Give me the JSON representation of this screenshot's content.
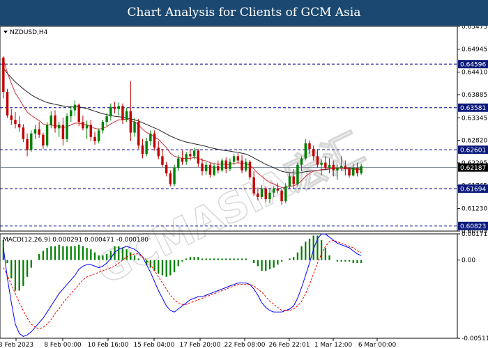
{
  "header": {
    "title": "Chart Analysis for Clients of GCM Asia"
  },
  "watermark": {
    "text": "GCMASIA宏汇",
    "color": "#c8c8c8"
  },
  "chart_data": [
    {
      "type": "candlestick",
      "symbol_label": "NZDUSD,H4",
      "ylim": [
        0.60705,
        0.65475
      ],
      "y_ticks": [
        "0.65475",
        "0.64945",
        "0.64410",
        "0.63885",
        "0.63345",
        "0.62820",
        "0.62295",
        "0.61765",
        "0.61230",
        "0.60705"
      ],
      "x_ticks": [
        "3 Feb 2023",
        "8 Feb 00:00",
        "10 Feb 16:00",
        "15 Feb 04:00",
        "17 Feb 20:00",
        "22 Feb 08:00",
        "26 Feb 22:01",
        "1 Mar 12:00",
        "6 Mar 00:00"
      ],
      "levels": [
        {
          "value": 0.64596,
          "label": "0.64596",
          "style": "dashed",
          "color": "#00008b"
        },
        {
          "value": 0.63581,
          "label": "0.63581",
          "style": "dashed",
          "color": "#00008b"
        },
        {
          "value": 0.62601,
          "label": "0.62601",
          "style": "dashed",
          "color": "#00008b"
        },
        {
          "value": 0.61694,
          "label": "0.61694",
          "style": "dashed",
          "color": "#00008b"
        },
        {
          "value": 0.60823,
          "label": "0.60823",
          "style": "dashed",
          "color": "#00008b"
        },
        {
          "value": 0.62187,
          "label": "0.62187",
          "style": "solid",
          "color": "#708090",
          "current": true
        }
      ],
      "candle_colors": {
        "up": "#008000",
        "down": "#c00000"
      },
      "candles": [
        [
          0.6475,
          0.6478,
          0.638,
          0.6395
        ],
        [
          0.6395,
          0.6402,
          0.6335,
          0.634
        ],
        [
          0.634,
          0.6355,
          0.6318,
          0.633
        ],
        [
          0.633,
          0.6348,
          0.631,
          0.632
        ],
        [
          0.632,
          0.6338,
          0.6302,
          0.6312
        ],
        [
          0.6312,
          0.632,
          0.6278,
          0.6285
        ],
        [
          0.6285,
          0.6298,
          0.6245,
          0.626
        ],
        [
          0.626,
          0.6305,
          0.6255,
          0.6298
        ],
        [
          0.6298,
          0.6318,
          0.6285,
          0.6308
        ],
        [
          0.6308,
          0.6325,
          0.6288,
          0.6295
        ],
        [
          0.6295,
          0.63,
          0.6262,
          0.627
        ],
        [
          0.627,
          0.6325,
          0.6265,
          0.6318
        ],
        [
          0.6318,
          0.635,
          0.631,
          0.634
        ],
        [
          0.634,
          0.6352,
          0.63,
          0.631
        ],
        [
          0.631,
          0.6325,
          0.629,
          0.6318
        ],
        [
          0.6318,
          0.6335,
          0.627,
          0.6285
        ],
        [
          0.6285,
          0.6345,
          0.6278,
          0.6338
        ],
        [
          0.6338,
          0.6362,
          0.6325,
          0.6352
        ],
        [
          0.6352,
          0.6375,
          0.6338,
          0.6365
        ],
        [
          0.6365,
          0.6368,
          0.6315,
          0.6325
        ],
        [
          0.6325,
          0.634,
          0.6305,
          0.631
        ],
        [
          0.631,
          0.6328,
          0.6285,
          0.6318
        ],
        [
          0.6318,
          0.633,
          0.628,
          0.629
        ],
        [
          0.629,
          0.6302,
          0.6272,
          0.628
        ],
        [
          0.628,
          0.631,
          0.6275,
          0.6305
        ],
        [
          0.6305,
          0.633,
          0.6298,
          0.6325
        ],
        [
          0.6325,
          0.6345,
          0.6315,
          0.6338
        ],
        [
          0.6338,
          0.6368,
          0.6328,
          0.636
        ],
        [
          0.636,
          0.6372,
          0.6345,
          0.6355
        ],
        [
          0.6355,
          0.637,
          0.634,
          0.6362
        ],
        [
          0.6362,
          0.6368,
          0.632,
          0.633
        ],
        [
          0.633,
          0.6358,
          0.6325,
          0.635
        ],
        [
          0.635,
          0.642,
          0.628,
          0.63
        ],
        [
          0.63,
          0.6335,
          0.629,
          0.6325
        ],
        [
          0.6325,
          0.6332,
          0.6262,
          0.627
        ],
        [
          0.627,
          0.6285,
          0.624,
          0.625
        ],
        [
          0.625,
          0.6288,
          0.6245,
          0.628
        ],
        [
          0.628,
          0.6305,
          0.627,
          0.6298
        ],
        [
          0.6298,
          0.6305,
          0.6258,
          0.6265
        ],
        [
          0.6265,
          0.628,
          0.6238,
          0.6245
        ],
        [
          0.6245,
          0.6262,
          0.622,
          0.6225
        ],
        [
          0.6225,
          0.6232,
          0.6198,
          0.6205
        ],
        [
          0.6205,
          0.6212,
          0.6175,
          0.618
        ],
        [
          0.618,
          0.6225,
          0.6175,
          0.6218
        ],
        [
          0.6218,
          0.6248,
          0.621,
          0.624
        ],
        [
          0.624,
          0.6258,
          0.6225,
          0.6232
        ],
        [
          0.6232,
          0.6255,
          0.6225,
          0.625
        ],
        [
          0.625,
          0.6262,
          0.6235,
          0.6245
        ],
        [
          0.6245,
          0.6265,
          0.6238,
          0.6258
        ],
        [
          0.6258,
          0.6262,
          0.622,
          0.6228
        ],
        [
          0.6228,
          0.624,
          0.62,
          0.621
        ],
        [
          0.621,
          0.6232,
          0.6202,
          0.6225
        ],
        [
          0.6225,
          0.623,
          0.6195,
          0.6202
        ],
        [
          0.6202,
          0.6228,
          0.6198,
          0.6222
        ],
        [
          0.6222,
          0.6235,
          0.6205,
          0.6212
        ],
        [
          0.6212,
          0.624,
          0.6208,
          0.6235
        ],
        [
          0.6235,
          0.6242,
          0.6205,
          0.6215
        ],
        [
          0.6215,
          0.624,
          0.621,
          0.6232
        ],
        [
          0.6232,
          0.625,
          0.6225,
          0.6245
        ],
        [
          0.6245,
          0.6252,
          0.6228,
          0.6235
        ],
        [
          0.6235,
          0.6248,
          0.6205,
          0.6212
        ],
        [
          0.6212,
          0.624,
          0.6208,
          0.6232
        ],
        [
          0.6232,
          0.6236,
          0.619,
          0.6196
        ],
        [
          0.6196,
          0.621,
          0.6152,
          0.6158
        ],
        [
          0.6158,
          0.6172,
          0.6142,
          0.615
        ],
        [
          0.615,
          0.6178,
          0.6145,
          0.617
        ],
        [
          0.617,
          0.6175,
          0.6138,
          0.6145
        ],
        [
          0.6145,
          0.6168,
          0.6135,
          0.616
        ],
        [
          0.616,
          0.6175,
          0.615,
          0.617
        ],
        [
          0.617,
          0.6182,
          0.6158,
          0.6165
        ],
        [
          0.6165,
          0.617,
          0.6132,
          0.614
        ],
        [
          0.614,
          0.6182,
          0.6135,
          0.6175
        ],
        [
          0.6175,
          0.6205,
          0.6168,
          0.6198
        ],
        [
          0.6198,
          0.6215,
          0.617,
          0.618
        ],
        [
          0.618,
          0.623,
          0.6175,
          0.6225
        ],
        [
          0.6225,
          0.6245,
          0.621,
          0.624
        ],
        [
          0.624,
          0.6285,
          0.6235,
          0.6275
        ],
        [
          0.6275,
          0.6282,
          0.625,
          0.6262
        ],
        [
          0.6262,
          0.627,
          0.6235,
          0.6245
        ],
        [
          0.6245,
          0.6262,
          0.6218,
          0.6225
        ],
        [
          0.6225,
          0.6238,
          0.62,
          0.623
        ],
        [
          0.623,
          0.6245,
          0.6212,
          0.6218
        ],
        [
          0.6218,
          0.624,
          0.6205,
          0.6225
        ],
        [
          0.6225,
          0.6235,
          0.6198,
          0.6212
        ],
        [
          0.6212,
          0.6225,
          0.619,
          0.6218
        ],
        [
          0.6218,
          0.6245,
          0.621,
          0.6222
        ],
        [
          0.6222,
          0.6235,
          0.62,
          0.6215
        ],
        [
          0.6215,
          0.622,
          0.6195,
          0.62
        ],
        [
          0.62,
          0.6228,
          0.6198,
          0.6218
        ],
        [
          0.6218,
          0.623,
          0.6198,
          0.6205
        ],
        [
          0.6205,
          0.6228,
          0.6202,
          0.6222
        ]
      ],
      "ma_red": [
        0.647,
        0.644,
        0.6415,
        0.6392,
        0.6378,
        0.6362,
        0.6348,
        0.634,
        0.6334,
        0.6328,
        0.632,
        0.6318,
        0.6318,
        0.6316,
        0.6315,
        0.6312,
        0.6314,
        0.6318,
        0.6322,
        0.6322,
        0.632,
        0.6318,
        0.6314,
        0.631,
        0.6308,
        0.631,
        0.6314,
        0.632,
        0.6325,
        0.633,
        0.633,
        0.6332,
        0.6328,
        0.6325,
        0.6318,
        0.6308,
        0.63,
        0.6296,
        0.629,
        0.6284,
        0.6275,
        0.6265,
        0.6252,
        0.6245,
        0.6242,
        0.624,
        0.624,
        0.624,
        0.6242,
        0.624,
        0.6236,
        0.6234,
        0.623,
        0.6228,
        0.6226,
        0.6227,
        0.6226,
        0.6226,
        0.6228,
        0.623,
        0.6228,
        0.6228,
        0.6224,
        0.6215,
        0.6205,
        0.6198,
        0.619,
        0.6184,
        0.618,
        0.6176,
        0.6172,
        0.6172,
        0.6175,
        0.6176,
        0.618,
        0.6188,
        0.6198,
        0.6205,
        0.621,
        0.6212,
        0.6214,
        0.6215,
        0.6216,
        0.6216,
        0.6216,
        0.6217,
        0.6217,
        0.6215,
        0.6215,
        0.6214,
        0.6214
      ],
      "ma_black": [
        0.645,
        0.6438,
        0.6428,
        0.6418,
        0.641,
        0.6402,
        0.6395,
        0.6388,
        0.6383,
        0.6378,
        0.6374,
        0.637,
        0.6368,
        0.6366,
        0.6364,
        0.6362,
        0.6361,
        0.636,
        0.636,
        0.636,
        0.6358,
        0.6356,
        0.6353,
        0.635,
        0.6347,
        0.6344,
        0.6342,
        0.634,
        0.6338,
        0.6337,
        0.6336,
        0.6334,
        0.6332,
        0.633,
        0.6327,
        0.6323,
        0.6319,
        0.6315,
        0.6311,
        0.6307,
        0.6302,
        0.6297,
        0.6292,
        0.6288,
        0.6284,
        0.6281,
        0.6278,
        0.6276,
        0.6274,
        0.6272,
        0.627,
        0.6268,
        0.6265,
        0.6263,
        0.6261,
        0.6259,
        0.6258,
        0.6257,
        0.6255,
        0.6254,
        0.6252,
        0.625,
        0.6246,
        0.6241,
        0.6236,
        0.6231,
        0.6226,
        0.6222,
        0.6218,
        0.6214,
        0.621,
        0.6208,
        0.6207,
        0.6206,
        0.6206,
        0.6207,
        0.6209,
        0.621,
        0.6211,
        0.6212,
        0.6213,
        0.6214,
        0.6215,
        0.6216,
        0.6216,
        0.6217,
        0.6217,
        0.6217,
        0.6217,
        0.6217,
        0.6217
      ]
    },
    {
      "type": "macd",
      "label": "MACD(12,26,9) 0.000291 0.000471 -0.000180",
      "ylim": [
        -0.005118,
        0.001713
      ],
      "y_ticks": [
        "0.001713",
        "0.00",
        "-0.005118"
      ],
      "colors": {
        "macd_line": "#0000ff",
        "signal_line": "#ff0000",
        "histogram": "#008000"
      },
      "macd_line": [
        0.0008,
        -0.0012,
        -0.0028,
        -0.0042,
        -0.0048,
        -0.005,
        -0.0049,
        -0.0047,
        -0.0044,
        -0.0041,
        -0.0038,
        -0.0034,
        -0.003,
        -0.0026,
        -0.0022,
        -0.0019,
        -0.0016,
        -0.0013,
        -0.001,
        -0.0006,
        -0.0004,
        -0.0003,
        -0.0003,
        -0.0004,
        -0.0005,
        -0.0004,
        -0.0002,
        0.0001,
        0.0005,
        0.0007,
        0.0008,
        0.0009,
        0.0008,
        0.0007,
        0.0005,
        0.0002,
        -0.0003,
        -0.0008,
        -0.0014,
        -0.002,
        -0.0025,
        -0.003,
        -0.0033,
        -0.0034,
        -0.0032,
        -0.003,
        -0.0028,
        -0.0026,
        -0.0025,
        -0.0024,
        -0.0024,
        -0.0023,
        -0.0022,
        -0.0021,
        -0.002,
        -0.0019,
        -0.0018,
        -0.0017,
        -0.0016,
        -0.0015,
        -0.0015,
        -0.0015,
        -0.0016,
        -0.0019,
        -0.0023,
        -0.0028,
        -0.0031,
        -0.0033,
        -0.0034,
        -0.0034,
        -0.0034,
        -0.0033,
        -0.0032,
        -0.003,
        -0.0025,
        -0.0018,
        -0.001,
        -0.0002,
        0.0007,
        0.0014,
        0.0017,
        0.0017,
        0.0015,
        0.0013,
        0.0011,
        0.001,
        0.0009,
        0.0008,
        0.0006,
        0.0004,
        0.0003
      ],
      "signal_line": [
        -0.0005,
        -0.001,
        -0.0016,
        -0.0022,
        -0.0028,
        -0.0033,
        -0.0038,
        -0.0042,
        -0.0044,
        -0.0045,
        -0.0044,
        -0.0042,
        -0.0039,
        -0.0035,
        -0.0032,
        -0.0028,
        -0.0025,
        -0.0022,
        -0.0019,
        -0.0016,
        -0.0013,
        -0.0011,
        -0.001,
        -0.0009,
        -0.0008,
        -0.0007,
        -0.0006,
        -0.0005,
        -0.0004,
        -0.0002,
        0.0,
        0.0002,
        0.0003,
        0.0004,
        0.0004,
        0.0002,
        0.0,
        -0.0003,
        -0.0007,
        -0.0011,
        -0.0015,
        -0.0019,
        -0.0023,
        -0.0026,
        -0.0028,
        -0.0029,
        -0.0029,
        -0.0028,
        -0.0027,
        -0.0026,
        -0.0025,
        -0.0024,
        -0.0023,
        -0.0022,
        -0.0021,
        -0.002,
        -0.0019,
        -0.0018,
        -0.0017,
        -0.0016,
        -0.0016,
        -0.0016,
        -0.0016,
        -0.0017,
        -0.0019,
        -0.0021,
        -0.0024,
        -0.0027,
        -0.0029,
        -0.0031,
        -0.0033,
        -0.0033,
        -0.0033,
        -0.0032,
        -0.003,
        -0.0027,
        -0.0022,
        -0.0016,
        -0.0009,
        -0.0002,
        0.0004,
        0.0009,
        0.0012,
        0.0013,
        0.0012,
        0.0011,
        0.001,
        0.0009,
        0.0008,
        0.0006,
        0.0005
      ]
    }
  ]
}
